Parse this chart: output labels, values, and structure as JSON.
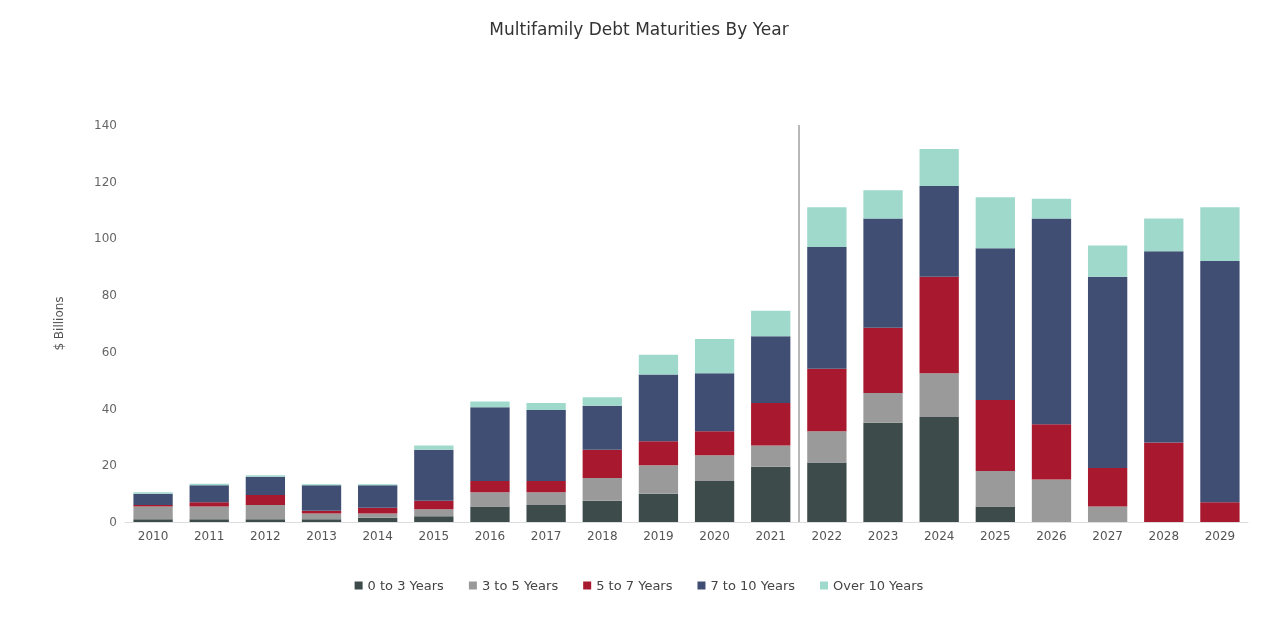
{
  "chart_data": {
    "type": "bar",
    "title": "Multifamily Debt Maturities By Year",
    "ylabel": "$ Billions",
    "categories": [
      "2010",
      "2011",
      "2012",
      "2013",
      "2014",
      "2015",
      "2016",
      "2017",
      "2018",
      "2019",
      "2020",
      "2021",
      "2022",
      "2023",
      "2024",
      "2025",
      "2026",
      "2027",
      "2028",
      "2029"
    ],
    "stacked": true,
    "legend": "bottom",
    "grid": false,
    "ylim": [
      0,
      140
    ],
    "yticks": [
      0,
      20,
      40,
      60,
      80,
      100,
      120,
      140
    ],
    "series": [
      {
        "name": "0 to 3 Years",
        "color": "#3d4b4b",
        "values": [
          1,
          1,
          1,
          1,
          1.5,
          2,
          5.5,
          6,
          7.5,
          10,
          14.5,
          19.5,
          21,
          35,
          37,
          5.5,
          0,
          0,
          0,
          0
        ]
      },
      {
        "name": "3 to 5 Years",
        "color": "#9a9a9a",
        "values": [
          4.5,
          4.5,
          5,
          2,
          1.5,
          2.5,
          5,
          4.5,
          8,
          10,
          9,
          7.5,
          11,
          10.5,
          15.5,
          12.5,
          15,
          5.5,
          0,
          0
        ]
      },
      {
        "name": "5 to 7 Years",
        "color": "#a8182e",
        "values": [
          0.5,
          1.5,
          3.5,
          1,
          2,
          3,
          4,
          4,
          10,
          8.5,
          8.5,
          15,
          22,
          23,
          34,
          25,
          19.5,
          13.5,
          28,
          7
        ]
      },
      {
        "name": "7 to 10 Years",
        "color": "#3f4e72",
        "values": [
          4,
          6,
          6.5,
          9,
          8,
          18,
          26,
          25,
          15.5,
          23.5,
          20.5,
          23.5,
          43,
          38.5,
          32,
          53.5,
          72.5,
          67.5,
          67.5,
          85
        ]
      },
      {
        "name": "Over 10 Years",
        "color": "#9fd9cc",
        "values": [
          0.5,
          0.5,
          0.5,
          0.3,
          0.3,
          1.5,
          2,
          2.5,
          3,
          7,
          12,
          9,
          14,
          10,
          13,
          18,
          7,
          11,
          11.5,
          19
        ]
      }
    ]
  }
}
